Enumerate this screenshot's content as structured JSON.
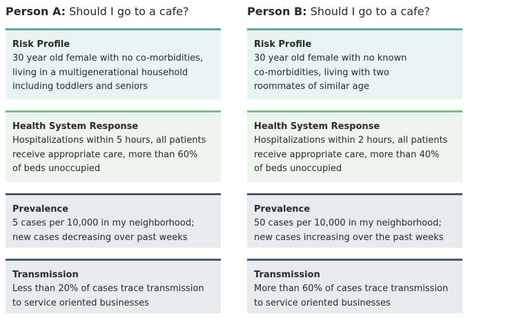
{
  "columns": {
    "a": {
      "person": "Person A:",
      "question": "Should I go to a cafe?",
      "cards": [
        {
          "title": "Risk Profile",
          "text": "30 year old female with no co-morbidities,\nliving in a multigenerational household\nincluding toddlers and seniors"
        },
        {
          "title": "Health System Response",
          "text": "Hospitalizations within 5 hours, all patients\nreceive appropriate care, more than 60%\nof beds unoccupied"
        },
        {
          "title": "Prevalence",
          "text": "5 cases per 10,000 in my neighborhood;\nnew cases decreasing over past weeks"
        },
        {
          "title": "Transmission",
          "text": "Less than 20% of cases trace transmission\nto service oriented businesses"
        }
      ]
    },
    "b": {
      "person": "Person B:",
      "question": "Should I go to a cafe?",
      "cards": [
        {
          "title": "Risk Profile",
          "text": "30 year old female with no known\nco-morbidities, living with two\nroommates of similar age"
        },
        {
          "title": "Health System Response",
          "text": "Hospitalizations within 2 hours, all patients\nreceive appropriate care, more than 40%\nof beds unoccupied"
        },
        {
          "title": "Prevalence",
          "text": "50 cases per 10,000 in my neighborhood;\nnew cases increasing over the past weeks"
        },
        {
          "title": "Transmission",
          "text": "More than 60% of cases trace transmission\nto service oriented businesses"
        }
      ]
    }
  },
  "colors": {
    "risk_accent": "#4fada5",
    "health_accent": "#7cbd84",
    "prevalence_accent": "#3f5c72",
    "transmission_accent": "#3f5c72"
  }
}
